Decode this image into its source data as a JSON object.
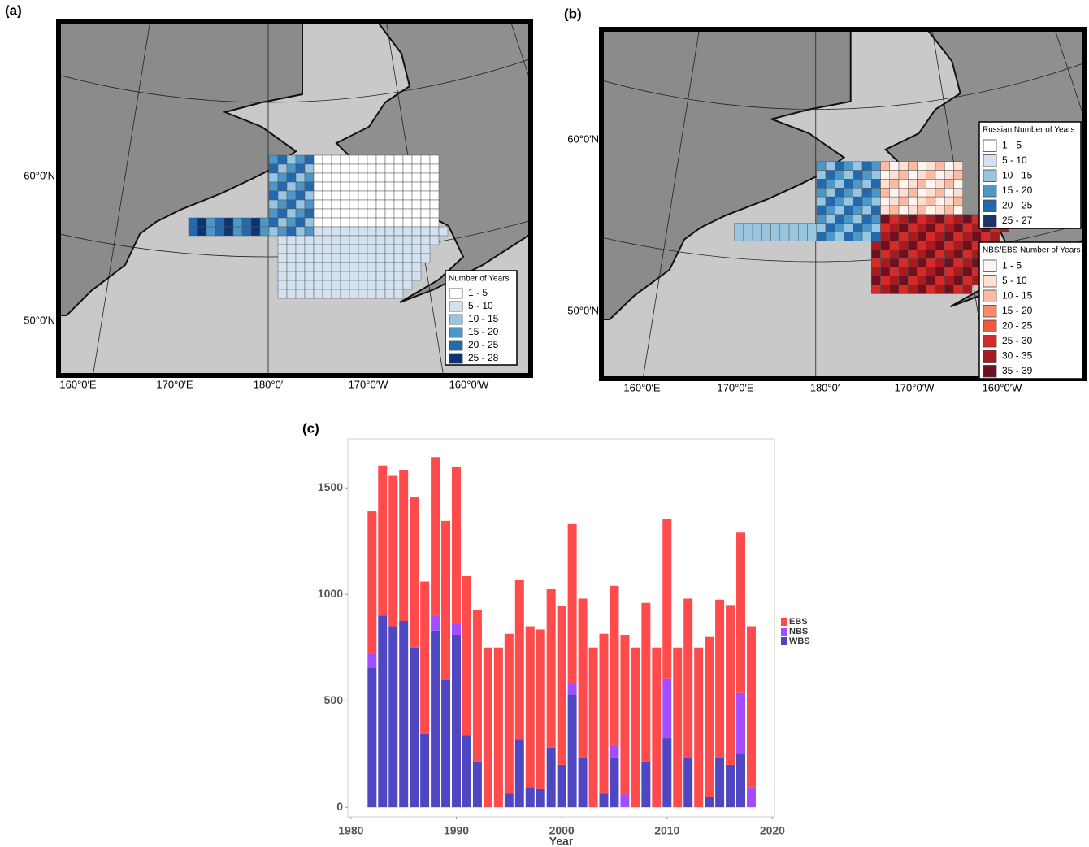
{
  "panels": {
    "a": {
      "label": "(a)",
      "lat_labels": [
        "60°0′N",
        "50°0′N"
      ],
      "lon_labels": [
        "160°0′E",
        "170°0′E",
        "180°0′",
        "170°0′W",
        "160°0′W"
      ],
      "legend": {
        "title": "Number of Years",
        "items": [
          "1 - 5",
          "5 - 10",
          "10 - 15",
          "15 - 20",
          "20 - 25",
          "25 - 28"
        ],
        "colors": [
          "#ffffff",
          "#d3e2f1",
          "#98c5e0",
          "#4a97c8",
          "#2269b0",
          "#0b3475"
        ]
      }
    },
    "b": {
      "label": "(b)",
      "lat_labels": [
        "60°0′N",
        "50°0′N"
      ],
      "lon_labels": [
        "160°0′E",
        "170°0′E",
        "180°0′",
        "170°0′W",
        "160°0′W"
      ],
      "legends": [
        {
          "title": "Russian Number of Years",
          "items": [
            "1 - 5",
            "5 - 10",
            "10 - 15",
            "15 - 20",
            "20 - 25",
            "25 - 27"
          ],
          "colors": [
            "#ffffff",
            "#d3e2f1",
            "#98c5e0",
            "#4a97c8",
            "#2269b0",
            "#1c3466"
          ]
        },
        {
          "title": "NBS/EBS Number of Years",
          "items": [
            "1 - 5",
            "5 - 10",
            "10 - 15",
            "15 - 20",
            "20 - 25",
            "25 - 30",
            "30 - 35",
            "35 - 39"
          ],
          "colors": [
            "#fff5f0",
            "#fde0d2",
            "#fcbba1",
            "#fc8a6a",
            "#f4583f",
            "#d42a28",
            "#a81a1d",
            "#6e1020"
          ]
        }
      ]
    }
  },
  "chart_data": {
    "type": "stacked_bar",
    "label": "(c)",
    "x_label": "Year",
    "x": [
      1982,
      1983,
      1984,
      1985,
      1986,
      1987,
      1988,
      1989,
      1990,
      1991,
      1992,
      1993,
      1994,
      1995,
      1996,
      1997,
      1998,
      1999,
      2000,
      2001,
      2002,
      2003,
      2004,
      2005,
      2006,
      2007,
      2008,
      2009,
      2010,
      2011,
      2012,
      2013,
      2014,
      2015,
      2016,
      2017,
      2018
    ],
    "series": [
      {
        "name": "WBS",
        "color": "#4f47c2",
        "values": [
          655,
          900,
          850,
          875,
          750,
          345,
          830,
          600,
          810,
          340,
          215,
          0,
          0,
          65,
          320,
          95,
          85,
          280,
          200,
          530,
          235,
          0,
          65,
          235,
          0,
          0,
          215,
          0,
          325,
          0,
          230,
          0,
          50,
          230,
          200,
          255,
          0
        ]
      },
      {
        "name": "NBS",
        "color": "#a24dff",
        "values": [
          65,
          0,
          0,
          0,
          0,
          0,
          70,
          0,
          50,
          0,
          0,
          0,
          0,
          0,
          0,
          0,
          0,
          0,
          0,
          50,
          0,
          0,
          0,
          60,
          60,
          0,
          0,
          0,
          280,
          0,
          0,
          0,
          0,
          0,
          0,
          285,
          95
        ]
      },
      {
        "name": "EBS",
        "color": "#ff4b4b",
        "values": [
          670,
          705,
          710,
          710,
          705,
          715,
          745,
          745,
          740,
          745,
          710,
          750,
          750,
          750,
          750,
          755,
          750,
          745,
          745,
          750,
          745,
          750,
          750,
          745,
          750,
          750,
          745,
          750,
          750,
          750,
          750,
          750,
          750,
          745,
          750,
          750,
          755
        ]
      }
    ],
    "xlim": [
      1979.7,
      2020.2
    ],
    "xticks": [
      1980,
      1990,
      2000,
      2010,
      2020
    ],
    "ylim": [
      -45,
      1730
    ],
    "yticks": [
      0,
      500,
      1000,
      1500
    ],
    "legend_order": [
      2,
      1,
      0
    ]
  }
}
